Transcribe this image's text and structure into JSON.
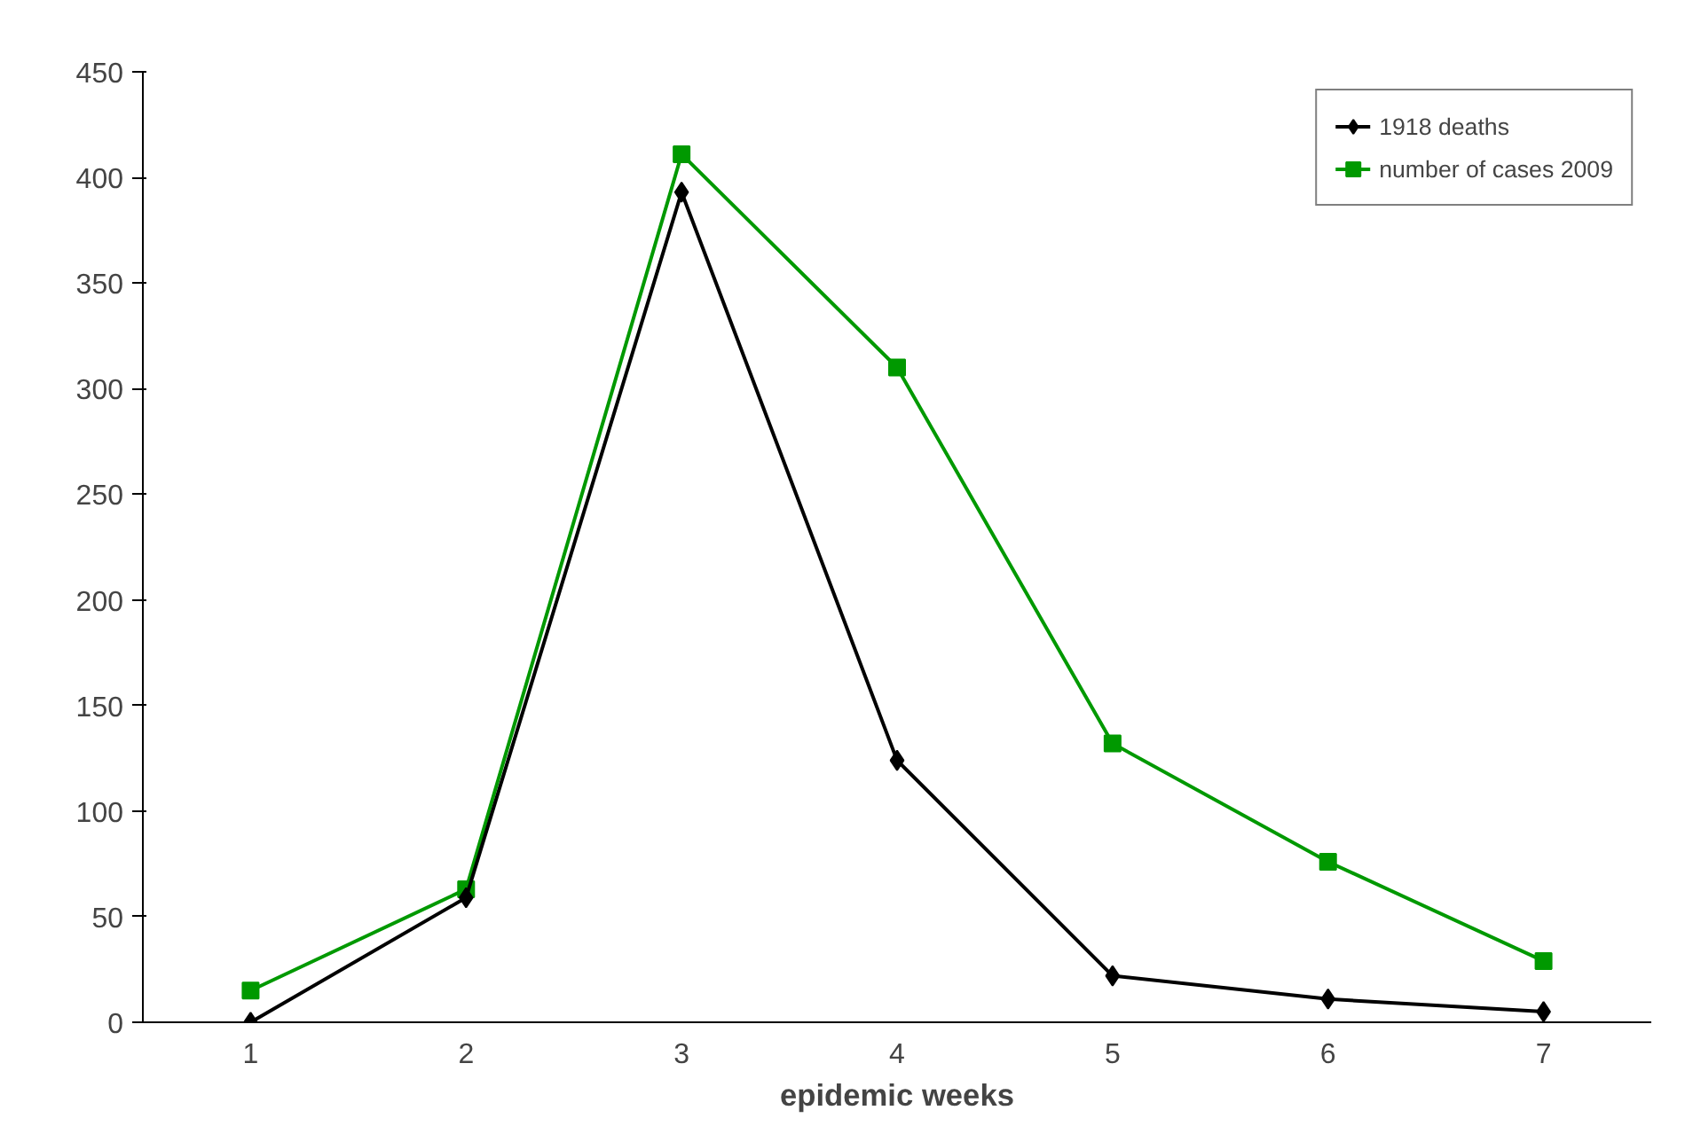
{
  "chart_data": {
    "type": "line",
    "xlabel": "epidemic weeks",
    "categories": [
      "1",
      "2",
      "3",
      "4",
      "5",
      "6",
      "7"
    ],
    "series": [
      {
        "name": "1918 deaths",
        "color": "#000000",
        "marker": "diamond",
        "values": [
          0,
          59,
          393,
          124,
          22,
          11,
          5
        ]
      },
      {
        "name": "number of cases 2009",
        "color": "#009900",
        "marker": "square",
        "values": [
          15,
          63,
          411,
          310,
          132,
          76,
          29
        ]
      }
    ],
    "ylim": [
      0,
      450
    ],
    "yticks": [
      0,
      50,
      100,
      150,
      200,
      250,
      300,
      350,
      400,
      450
    ],
    "grid": false,
    "legend": "top right"
  }
}
